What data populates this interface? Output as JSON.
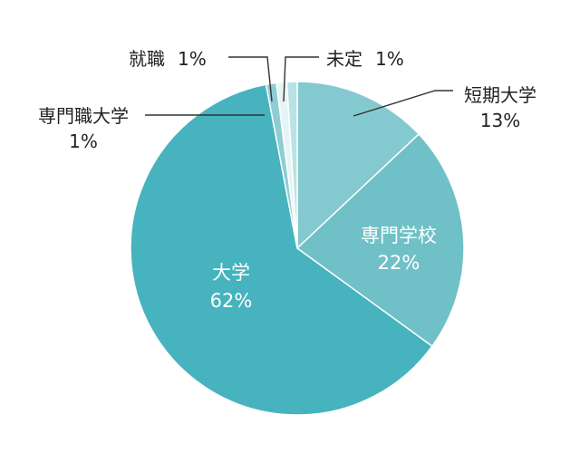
{
  "chart_data": {
    "type": "pie",
    "unit": "%",
    "slices": [
      {
        "label": "短期大学",
        "value": 13,
        "value_text": "13%",
        "color": "#84c9cf"
      },
      {
        "label": "専門学校",
        "value": 22,
        "value_text": "22%",
        "color": "#6fc0c7"
      },
      {
        "label": "大学",
        "value": 62,
        "value_text": "62%",
        "color": "#46b3be"
      },
      {
        "label": "専門職大学",
        "value": 1,
        "value_text": "1%",
        "color": "#8dcdd3"
      },
      {
        "label": "就職",
        "value": 1,
        "value_text": "1%",
        "color": "#e6f4f5"
      },
      {
        "label": "未定",
        "value": 1,
        "value_text": "1%",
        "color": "#b9e2e5"
      }
    ],
    "label_placement": {
      "短期大学": "outside-right",
      "専門学校": "inside",
      "大学": "inside",
      "専門職大学": "outside-left",
      "就職": "outside-top",
      "未定": "outside-top"
    }
  }
}
